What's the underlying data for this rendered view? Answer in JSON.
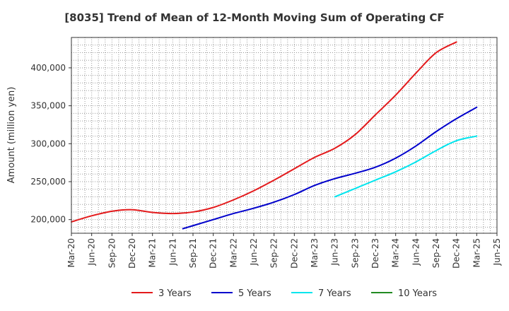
{
  "chart_data": {
    "type": "line",
    "title": "[8035]  Trend of Mean of 12-Month Moving Sum of Operating CF",
    "xlabel": "",
    "ylabel": "Amount (million yen)",
    "ylim": [
      182000,
      440000
    ],
    "yticks": [
      200000,
      250000,
      300000,
      350000,
      400000
    ],
    "ytick_labels": [
      "200,000",
      "250,000",
      "300,000",
      "350,000",
      "400,000"
    ],
    "categories": [
      "Mar-20",
      "Jun-20",
      "Sep-20",
      "Dec-20",
      "Mar-21",
      "Jun-21",
      "Sep-21",
      "Dec-21",
      "Mar-22",
      "Jun-22",
      "Sep-22",
      "Dec-22",
      "Mar-23",
      "Jun-23",
      "Sep-23",
      "Dec-23",
      "Mar-24",
      "Jun-24",
      "Sep-24",
      "Dec-24",
      "Mar-25",
      "Jun-25"
    ],
    "grid": true,
    "legend_position": "bottom",
    "series": [
      {
        "name": "3 Years",
        "color": "#e31a1c",
        "points": [
          [
            0,
            197000
          ],
          [
            1,
            205000
          ],
          [
            2,
            211000
          ],
          [
            3,
            213000
          ],
          [
            4,
            209500
          ],
          [
            5,
            208000
          ],
          [
            6,
            210000
          ],
          [
            7,
            216000
          ],
          [
            8,
            226000
          ],
          [
            9,
            238000
          ],
          [
            10,
            252000
          ],
          [
            11,
            267000
          ],
          [
            12,
            282000
          ],
          [
            13,
            294000
          ],
          [
            14,
            312000
          ],
          [
            15,
            338000
          ],
          [
            16,
            364000
          ],
          [
            17,
            393000
          ],
          [
            18,
            420000
          ],
          [
            19,
            434000
          ]
        ]
      },
      {
        "name": "5 Years",
        "color": "#0000cc",
        "points": [
          [
            5.5,
            188000
          ],
          [
            6,
            192000
          ],
          [
            7,
            200000
          ],
          [
            8,
            208000
          ],
          [
            9,
            215000
          ],
          [
            10,
            223000
          ],
          [
            11,
            233000
          ],
          [
            12,
            245000
          ],
          [
            13,
            254000
          ],
          [
            14,
            261000
          ],
          [
            15,
            269000
          ],
          [
            16,
            281000
          ],
          [
            17,
            297000
          ],
          [
            18,
            316000
          ],
          [
            19,
            333000
          ],
          [
            20,
            348000
          ]
        ]
      },
      {
        "name": "7 Years",
        "color": "#00e5ee",
        "points": [
          [
            13,
            230000
          ],
          [
            14,
            241000
          ],
          [
            15,
            252000
          ],
          [
            16,
            263000
          ],
          [
            17,
            276000
          ],
          [
            18,
            291000
          ],
          [
            19,
            304000
          ],
          [
            20,
            310000
          ]
        ]
      },
      {
        "name": "10 Years",
        "color": "#228b22",
        "points": []
      }
    ]
  }
}
